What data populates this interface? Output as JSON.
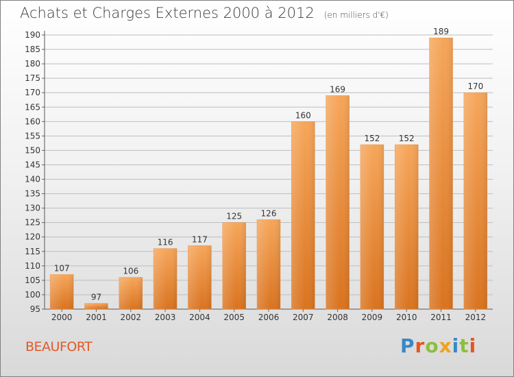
{
  "page": {
    "title": "Achats et Charges Externes 2000 à 2012",
    "unit": "(en milliers d'€)",
    "location": "BEAUFORT",
    "brand": {
      "text": "Proxiti",
      "letters": [
        {
          "ch": "P",
          "color": "#3a88c8"
        },
        {
          "ch": "r",
          "color": "#e8541f"
        },
        {
          "ch": "o",
          "color": "#8cbf3f"
        },
        {
          "ch": "x",
          "color": "#f0a21a"
        },
        {
          "ch": "i",
          "color": "#3a88c8"
        },
        {
          "ch": "t",
          "color": "#8cbf3f"
        },
        {
          "ch": "i",
          "color": "#e8541f"
        }
      ]
    }
  },
  "chart_data": {
    "type": "bar",
    "categories": [
      "2000",
      "2001",
      "2002",
      "2003",
      "2004",
      "2005",
      "2006",
      "2007",
      "2008",
      "2009",
      "2010",
      "2011",
      "2012"
    ],
    "values": [
      107,
      97,
      106,
      116,
      117,
      125,
      126,
      160,
      169,
      152,
      152,
      189,
      170
    ],
    "ylim": [
      95,
      190
    ],
    "yticks": [
      95,
      100,
      105,
      110,
      115,
      120,
      125,
      130,
      135,
      140,
      145,
      150,
      155,
      160,
      165,
      170,
      175,
      180,
      185,
      190
    ],
    "grid": true,
    "bar_color_top": "#f6a65a",
    "bar_color_bottom": "#d9731f"
  }
}
